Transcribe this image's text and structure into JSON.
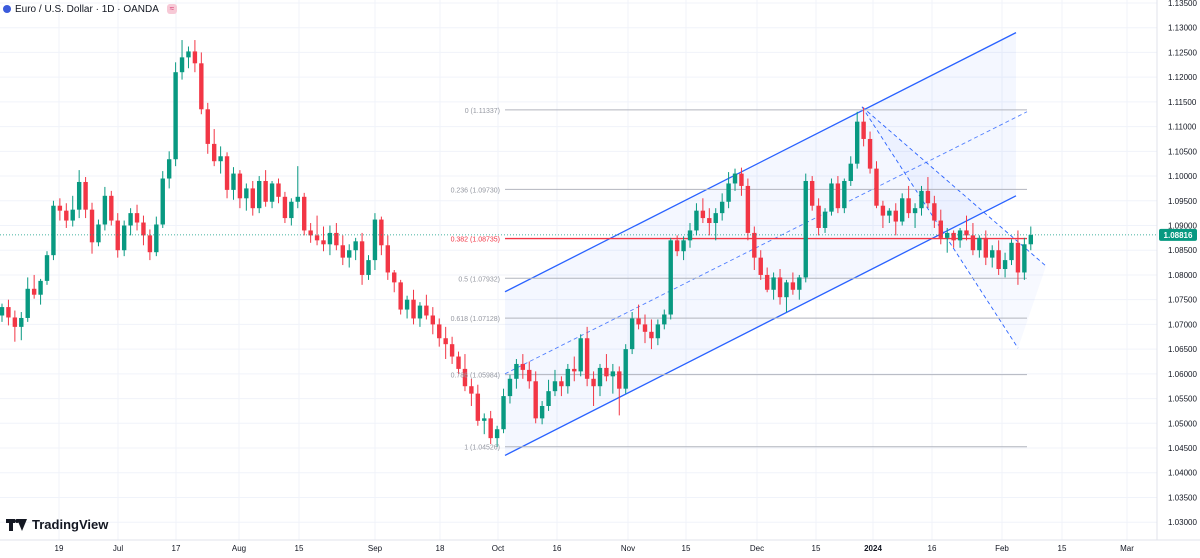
{
  "header": {
    "title": "Euro / U.S. Dollar · 1D · OANDA"
  },
  "branding": {
    "name": "TradingView"
  },
  "chart_data": {
    "type": "candlestick",
    "ylim": [
      1.0264,
      1.1356
    ],
    "y_ticks": [
      "1.13500",
      "1.13000",
      "1.12500",
      "1.12000",
      "1.11500",
      "1.11000",
      "1.10500",
      "1.10000",
      "1.09500",
      "1.09000",
      "1.08500",
      "1.08000",
      "1.07500",
      "1.07000",
      "1.06500",
      "1.06000",
      "1.05500",
      "1.05000",
      "1.04500",
      "1.04000",
      "1.03500",
      "1.03000"
    ],
    "x_ticks": [
      "19",
      "Jul",
      "17",
      "Aug",
      "15",
      "Sep",
      "18",
      "Oct",
      "16",
      "Nov",
      "15",
      "Dec",
      "15",
      "2024",
      "16",
      "Feb",
      "15",
      "Mar"
    ],
    "current_price": "1.08816",
    "fib_levels": [
      {
        "label": "0 (1.11337)",
        "price": 1.11337
      },
      {
        "label": "0.236 (1.09730)",
        "price": 1.0973
      },
      {
        "label": "0.382 (1.08735)",
        "price": 1.08735
      },
      {
        "label": "0.5 (1.07932)",
        "price": 1.07932
      },
      {
        "label": "0.618 (1.07128)",
        "price": 1.07128
      },
      {
        "label": "0.786 (1.05984)",
        "price": 1.05984
      },
      {
        "label": "1 (1.04526)",
        "price": 1.04526
      }
    ],
    "candles": [
      {
        "o": 1.0718,
        "h": 1.0742,
        "l": 1.0705,
        "c": 1.0735
      },
      {
        "o": 1.0735,
        "h": 1.075,
        "l": 1.0698,
        "c": 1.0714
      },
      {
        "o": 1.0714,
        "h": 1.0728,
        "l": 1.0665,
        "c": 1.0695
      },
      {
        "o": 1.0695,
        "h": 1.0725,
        "l": 1.0668,
        "c": 1.0713
      },
      {
        "o": 1.0713,
        "h": 1.0795,
        "l": 1.0705,
        "c": 1.0772
      },
      {
        "o": 1.0772,
        "h": 1.08,
        "l": 1.0752,
        "c": 1.076
      },
      {
        "o": 1.076,
        "h": 1.0792,
        "l": 1.074,
        "c": 1.0788
      },
      {
        "o": 1.0788,
        "h": 1.0848,
        "l": 1.078,
        "c": 1.084
      },
      {
        "o": 1.084,
        "h": 1.095,
        "l": 1.083,
        "c": 1.094
      },
      {
        "o": 1.094,
        "h": 1.0955,
        "l": 1.091,
        "c": 1.093
      },
      {
        "o": 1.093,
        "h": 1.0945,
        "l": 1.0895,
        "c": 1.091
      },
      {
        "o": 1.091,
        "h": 1.096,
        "l": 1.0898,
        "c": 1.0932
      },
      {
        "o": 1.0932,
        "h": 1.1012,
        "l": 1.0915,
        "c": 1.0988
      },
      {
        "o": 1.0988,
        "h": 1.0998,
        "l": 1.0915,
        "c": 1.0932
      },
      {
        "o": 1.0932,
        "h": 1.0946,
        "l": 1.0843,
        "c": 1.0866
      },
      {
        "o": 1.0866,
        "h": 1.0912,
        "l": 1.0858,
        "c": 1.0902
      },
      {
        "o": 1.0902,
        "h": 1.0978,
        "l": 1.089,
        "c": 1.096
      },
      {
        "o": 1.096,
        "h": 1.097,
        "l": 1.09,
        "c": 1.091
      },
      {
        "o": 1.091,
        "h": 1.0925,
        "l": 1.0835,
        "c": 1.085
      },
      {
        "o": 1.085,
        "h": 1.091,
        "l": 1.0838,
        "c": 1.09
      },
      {
        "o": 1.09,
        "h": 1.0935,
        "l": 1.088,
        "c": 1.0925
      },
      {
        "o": 1.0925,
        "h": 1.0942,
        "l": 1.089,
        "c": 1.0906
      },
      {
        "o": 1.0906,
        "h": 1.092,
        "l": 1.086,
        "c": 1.088
      },
      {
        "o": 1.088,
        "h": 1.0892,
        "l": 1.083,
        "c": 1.0846
      },
      {
        "o": 1.0846,
        "h": 1.0918,
        "l": 1.0838,
        "c": 1.0902
      },
      {
        "o": 1.0902,
        "h": 1.101,
        "l": 1.0895,
        "c": 1.0995
      },
      {
        "o": 1.0995,
        "h": 1.105,
        "l": 1.0975,
        "c": 1.1034
      },
      {
        "o": 1.1034,
        "h": 1.123,
        "l": 1.102,
        "c": 1.121
      },
      {
        "o": 1.121,
        "h": 1.1275,
        "l": 1.1195,
        "c": 1.124
      },
      {
        "o": 1.124,
        "h": 1.1262,
        "l": 1.1218,
        "c": 1.1252
      },
      {
        "o": 1.1252,
        "h": 1.1275,
        "l": 1.121,
        "c": 1.1228
      },
      {
        "o": 1.1228,
        "h": 1.125,
        "l": 1.1125,
        "c": 1.1135
      },
      {
        "o": 1.1135,
        "h": 1.1148,
        "l": 1.1045,
        "c": 1.1065
      },
      {
        "o": 1.1065,
        "h": 1.1095,
        "l": 1.102,
        "c": 1.103
      },
      {
        "o": 1.103,
        "h": 1.106,
        "l": 1.1005,
        "c": 1.104
      },
      {
        "o": 1.104,
        "h": 1.1048,
        "l": 1.0955,
        "c": 1.0972
      },
      {
        "o": 1.0972,
        "h": 1.1018,
        "l": 1.0952,
        "c": 1.1005
      },
      {
        "o": 1.1005,
        "h": 1.1012,
        "l": 1.0935,
        "c": 1.0955
      },
      {
        "o": 1.0955,
        "h": 1.0985,
        "l": 1.093,
        "c": 1.0975
      },
      {
        "o": 1.0975,
        "h": 1.099,
        "l": 1.092,
        "c": 1.0935
      },
      {
        "o": 1.0935,
        "h": 1.1,
        "l": 1.0925,
        "c": 1.099
      },
      {
        "o": 1.099,
        "h": 1.1012,
        "l": 1.0938,
        "c": 1.0948
      },
      {
        "o": 1.0948,
        "h": 1.099,
        "l": 1.0935,
        "c": 1.0985
      },
      {
        "o": 1.0985,
        "h": 1.0995,
        "l": 1.0945,
        "c": 1.0958
      },
      {
        "o": 1.0958,
        "h": 1.0968,
        "l": 1.0905,
        "c": 1.0915
      },
      {
        "o": 1.0915,
        "h": 1.0955,
        "l": 1.09,
        "c": 1.0948
      },
      {
        "o": 1.0948,
        "h": 1.102,
        "l": 1.0935,
        "c": 1.0958
      },
      {
        "o": 1.0958,
        "h": 1.0966,
        "l": 1.088,
        "c": 1.089
      },
      {
        "o": 1.089,
        "h": 1.0905,
        "l": 1.0865,
        "c": 1.088
      },
      {
        "o": 1.088,
        "h": 1.092,
        "l": 1.086,
        "c": 1.087
      },
      {
        "o": 1.087,
        "h": 1.0898,
        "l": 1.0848,
        "c": 1.0862
      },
      {
        "o": 1.0862,
        "h": 1.09,
        "l": 1.084,
        "c": 1.0885
      },
      {
        "o": 1.0885,
        "h": 1.0905,
        "l": 1.085,
        "c": 1.086
      },
      {
        "o": 1.086,
        "h": 1.088,
        "l": 1.082,
        "c": 1.0835
      },
      {
        "o": 1.0835,
        "h": 1.0862,
        "l": 1.0815,
        "c": 1.085
      },
      {
        "o": 1.085,
        "h": 1.0875,
        "l": 1.083,
        "c": 1.0868
      },
      {
        "o": 1.0868,
        "h": 1.0885,
        "l": 1.078,
        "c": 1.08
      },
      {
        "o": 1.08,
        "h": 1.084,
        "l": 1.079,
        "c": 1.083
      },
      {
        "o": 1.083,
        "h": 1.0925,
        "l": 1.081,
        "c": 1.0912
      },
      {
        "o": 1.0912,
        "h": 1.0918,
        "l": 1.084,
        "c": 1.086
      },
      {
        "o": 1.086,
        "h": 1.088,
        "l": 1.079,
        "c": 1.0805
      },
      {
        "o": 1.0805,
        "h": 1.081,
        "l": 1.0765,
        "c": 1.0785
      },
      {
        "o": 1.0785,
        "h": 1.079,
        "l": 1.072,
        "c": 1.073
      },
      {
        "o": 1.073,
        "h": 1.0758,
        "l": 1.0712,
        "c": 1.075
      },
      {
        "o": 1.075,
        "h": 1.077,
        "l": 1.07,
        "c": 1.0712
      },
      {
        "o": 1.0712,
        "h": 1.0745,
        "l": 1.0695,
        "c": 1.0738
      },
      {
        "o": 1.0738,
        "h": 1.076,
        "l": 1.071,
        "c": 1.0718
      },
      {
        "o": 1.0718,
        "h": 1.0735,
        "l": 1.068,
        "c": 1.07
      },
      {
        "o": 1.07,
        "h": 1.0712,
        "l": 1.0655,
        "c": 1.0672
      },
      {
        "o": 1.0672,
        "h": 1.0695,
        "l": 1.063,
        "c": 1.066
      },
      {
        "o": 1.066,
        "h": 1.0675,
        "l": 1.062,
        "c": 1.0635
      },
      {
        "o": 1.0635,
        "h": 1.0645,
        "l": 1.06,
        "c": 1.061
      },
      {
        "o": 1.061,
        "h": 1.064,
        "l": 1.0565,
        "c": 1.0575
      },
      {
        "o": 1.0575,
        "h": 1.059,
        "l": 1.0535,
        "c": 1.056
      },
      {
        "o": 1.056,
        "h": 1.0578,
        "l": 1.0495,
        "c": 1.0505
      },
      {
        "o": 1.0505,
        "h": 1.052,
        "l": 1.0478,
        "c": 1.051
      },
      {
        "o": 1.051,
        "h": 1.0525,
        "l": 1.0458,
        "c": 1.047
      },
      {
        "o": 1.047,
        "h": 1.0495,
        "l": 1.0452,
        "c": 1.0488
      },
      {
        "o": 1.0488,
        "h": 1.057,
        "l": 1.048,
        "c": 1.0555
      },
      {
        "o": 1.0555,
        "h": 1.0598,
        "l": 1.054,
        "c": 1.059
      },
      {
        "o": 1.059,
        "h": 1.063,
        "l": 1.057,
        "c": 1.062
      },
      {
        "o": 1.062,
        "h": 1.064,
        "l": 1.059,
        "c": 1.0608
      },
      {
        "o": 1.0608,
        "h": 1.0625,
        "l": 1.057,
        "c": 1.0585
      },
      {
        "o": 1.0585,
        "h": 1.0605,
        "l": 1.05,
        "c": 1.051
      },
      {
        "o": 1.051,
        "h": 1.0545,
        "l": 1.0498,
        "c": 1.0535
      },
      {
        "o": 1.0535,
        "h": 1.0588,
        "l": 1.0525,
        "c": 1.0565
      },
      {
        "o": 1.0565,
        "h": 1.0608,
        "l": 1.0555,
        "c": 1.0585
      },
      {
        "o": 1.0585,
        "h": 1.0595,
        "l": 1.0555,
        "c": 1.0575
      },
      {
        "o": 1.0575,
        "h": 1.062,
        "l": 1.056,
        "c": 1.061
      },
      {
        "o": 1.061,
        "h": 1.0635,
        "l": 1.0585,
        "c": 1.0605
      },
      {
        "o": 1.0605,
        "h": 1.068,
        "l": 1.0595,
        "c": 1.0672
      },
      {
        "o": 1.0672,
        "h": 1.0695,
        "l": 1.0575,
        "c": 1.059
      },
      {
        "o": 1.059,
        "h": 1.0605,
        "l": 1.0535,
        "c": 1.0575
      },
      {
        "o": 1.0575,
        "h": 1.062,
        "l": 1.0555,
        "c": 1.0612
      },
      {
        "o": 1.0612,
        "h": 1.064,
        "l": 1.0585,
        "c": 1.0595
      },
      {
        "o": 1.0595,
        "h": 1.062,
        "l": 1.056,
        "c": 1.0605
      },
      {
        "o": 1.0605,
        "h": 1.0615,
        "l": 1.0516,
        "c": 1.057
      },
      {
        "o": 1.057,
        "h": 1.066,
        "l": 1.056,
        "c": 1.065
      },
      {
        "o": 1.065,
        "h": 1.0725,
        "l": 1.064,
        "c": 1.0712
      },
      {
        "o": 1.0712,
        "h": 1.074,
        "l": 1.069,
        "c": 1.07
      },
      {
        "o": 1.07,
        "h": 1.072,
        "l": 1.0662,
        "c": 1.0685
      },
      {
        "o": 1.0685,
        "h": 1.071,
        "l": 1.065,
        "c": 1.0672
      },
      {
        "o": 1.0672,
        "h": 1.071,
        "l": 1.0658,
        "c": 1.07
      },
      {
        "o": 1.07,
        "h": 1.073,
        "l": 1.069,
        "c": 1.072
      },
      {
        "o": 1.072,
        "h": 1.0875,
        "l": 1.071,
        "c": 1.087
      },
      {
        "o": 1.087,
        "h": 1.088,
        "l": 1.0838,
        "c": 1.0848
      },
      {
        "o": 1.0848,
        "h": 1.0878,
        "l": 1.083,
        "c": 1.087
      },
      {
        "o": 1.087,
        "h": 1.0905,
        "l": 1.0855,
        "c": 1.089
      },
      {
        "o": 1.089,
        "h": 1.0945,
        "l": 1.088,
        "c": 1.093
      },
      {
        "o": 1.093,
        "h": 1.0955,
        "l": 1.0905,
        "c": 1.0915
      },
      {
        "o": 1.0915,
        "h": 1.0935,
        "l": 1.088,
        "c": 1.0905
      },
      {
        "o": 1.0905,
        "h": 1.0935,
        "l": 1.087,
        "c": 1.0925
      },
      {
        "o": 1.0925,
        "h": 1.0965,
        "l": 1.091,
        "c": 1.0948
      },
      {
        "o": 1.0948,
        "h": 1.1008,
        "l": 1.0935,
        "c": 1.0985
      },
      {
        "o": 1.0985,
        "h": 1.1015,
        "l": 1.097,
        "c": 1.1005
      },
      {
        "o": 1.1005,
        "h": 1.1017,
        "l": 1.096,
        "c": 1.098
      },
      {
        "o": 1.098,
        "h": 1.0995,
        "l": 1.087,
        "c": 1.0885
      },
      {
        "o": 1.0885,
        "h": 1.0898,
        "l": 1.081,
        "c": 1.0835
      },
      {
        "o": 1.0835,
        "h": 1.085,
        "l": 1.079,
        "c": 1.08
      },
      {
        "o": 1.08,
        "h": 1.0815,
        "l": 1.0765,
        "c": 1.077
      },
      {
        "o": 1.077,
        "h": 1.0805,
        "l": 1.075,
        "c": 1.0795
      },
      {
        "o": 1.0795,
        "h": 1.0812,
        "l": 1.074,
        "c": 1.0755
      },
      {
        "o": 1.0755,
        "h": 1.079,
        "l": 1.0725,
        "c": 1.0785
      },
      {
        "o": 1.0785,
        "h": 1.0805,
        "l": 1.076,
        "c": 1.077
      },
      {
        "o": 1.077,
        "h": 1.08,
        "l": 1.075,
        "c": 1.0795
      },
      {
        "o": 1.0795,
        "h": 1.1005,
        "l": 1.0785,
        "c": 1.099
      },
      {
        "o": 1.099,
        "h": 1.1,
        "l": 1.093,
        "c": 1.094
      },
      {
        "o": 1.094,
        "h": 1.0955,
        "l": 1.088,
        "c": 1.0895
      },
      {
        "o": 1.0895,
        "h": 1.0935,
        "l": 1.0885,
        "c": 1.0928
      },
      {
        "o": 1.0928,
        "h": 1.0995,
        "l": 1.092,
        "c": 1.0985
      },
      {
        "o": 1.0985,
        "h": 1.1,
        "l": 1.0925,
        "c": 1.0935
      },
      {
        "o": 1.0935,
        "h": 1.0995,
        "l": 1.0925,
        "c": 1.099
      },
      {
        "o": 1.099,
        "h": 1.104,
        "l": 1.098,
        "c": 1.1025
      },
      {
        "o": 1.1025,
        "h": 1.113,
        "l": 1.1015,
        "c": 1.111
      },
      {
        "o": 1.111,
        "h": 1.1139,
        "l": 1.106,
        "c": 1.1075
      },
      {
        "o": 1.1075,
        "h": 1.109,
        "l": 1.1005,
        "c": 1.1015
      },
      {
        "o": 1.1015,
        "h": 1.103,
        "l": 1.0935,
        "c": 1.094
      },
      {
        "o": 1.094,
        "h": 1.095,
        "l": 1.0895,
        "c": 1.092
      },
      {
        "o": 1.092,
        "h": 1.0935,
        "l": 1.0905,
        "c": 1.093
      },
      {
        "o": 1.093,
        "h": 1.0945,
        "l": 1.088,
        "c": 1.0908
      },
      {
        "o": 1.0908,
        "h": 1.0965,
        "l": 1.09,
        "c": 1.0955
      },
      {
        "o": 1.0955,
        "h": 1.098,
        "l": 1.0915,
        "c": 1.0925
      },
      {
        "o": 1.0925,
        "h": 1.0945,
        "l": 1.0895,
        "c": 1.0935
      },
      {
        "o": 1.0935,
        "h": 1.098,
        "l": 1.092,
        "c": 1.097
      },
      {
        "o": 1.097,
        "h": 1.0998,
        "l": 1.0935,
        "c": 1.0945
      },
      {
        "o": 1.0945,
        "h": 1.096,
        "l": 1.0895,
        "c": 1.091
      },
      {
        "o": 1.091,
        "h": 1.0932,
        "l": 1.0862,
        "c": 1.0875
      },
      {
        "o": 1.0875,
        "h": 1.0895,
        "l": 1.0845,
        "c": 1.0885
      },
      {
        "o": 1.0885,
        "h": 1.089,
        "l": 1.0855,
        "c": 1.087
      },
      {
        "o": 1.087,
        "h": 1.0895,
        "l": 1.0855,
        "c": 1.089
      },
      {
        "o": 1.089,
        "h": 1.092,
        "l": 1.087,
        "c": 1.088
      },
      {
        "o": 1.088,
        "h": 1.0905,
        "l": 1.084,
        "c": 1.085
      },
      {
        "o": 1.085,
        "h": 1.088,
        "l": 1.0835,
        "c": 1.0875
      },
      {
        "o": 1.0875,
        "h": 1.089,
        "l": 1.082,
        "c": 1.0835
      },
      {
        "o": 1.0835,
        "h": 1.086,
        "l": 1.0815,
        "c": 1.085
      },
      {
        "o": 1.085,
        "h": 1.087,
        "l": 1.08,
        "c": 1.0812
      },
      {
        "o": 1.0812,
        "h": 1.0845,
        "l": 1.0795,
        "c": 1.083
      },
      {
        "o": 1.083,
        "h": 1.0872,
        "l": 1.082,
        "c": 1.0865
      },
      {
        "o": 1.0865,
        "h": 1.089,
        "l": 1.078,
        "c": 1.0805
      },
      {
        "o": 1.0805,
        "h": 1.0875,
        "l": 1.079,
        "c": 1.0862
      },
      {
        "o": 1.0862,
        "h": 1.0898,
        "l": 1.085,
        "c": 1.0881
      }
    ]
  }
}
